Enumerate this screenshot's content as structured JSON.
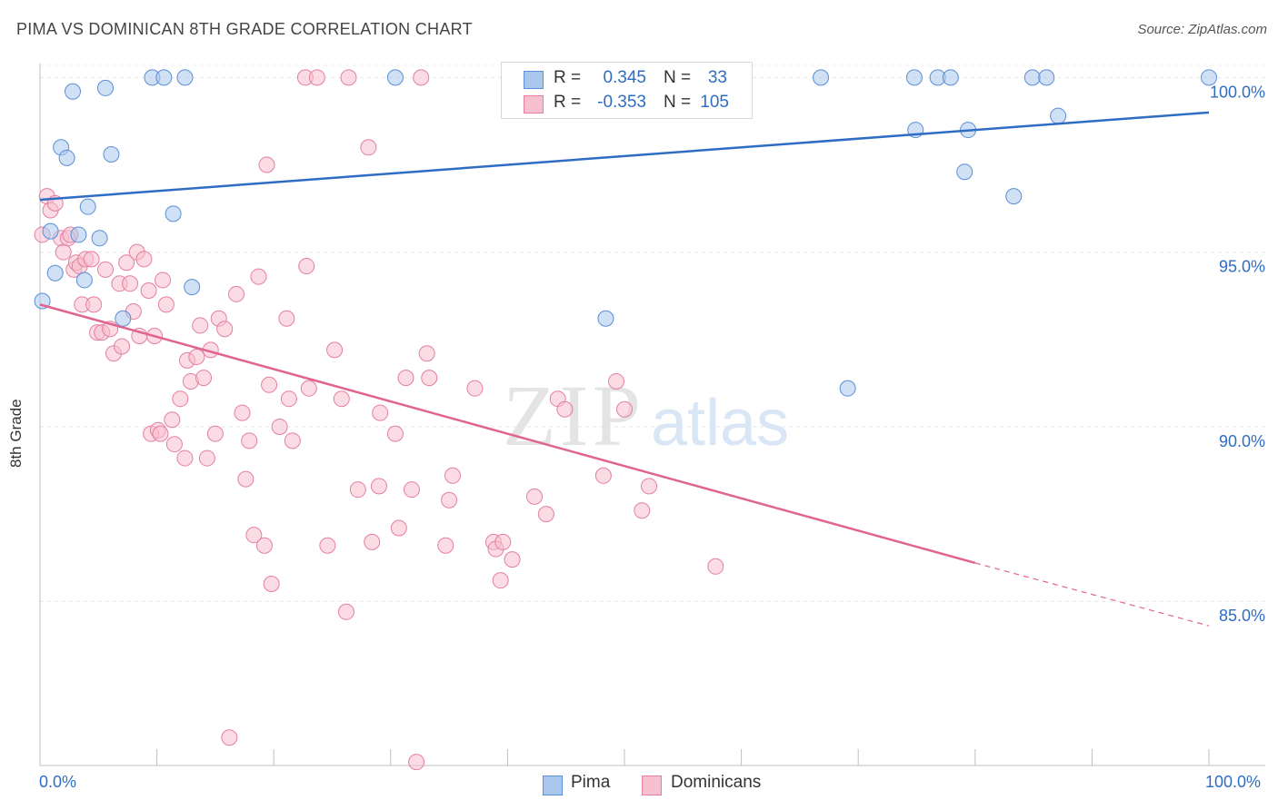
{
  "header": {
    "title": "PIMA VS DOMINICAN 8TH GRADE CORRELATION CHART",
    "source": "Source: ZipAtlas.com"
  },
  "watermark": {
    "zip": "ZIP",
    "atlas": "atlas"
  },
  "legend": {
    "pima": {
      "r_label": "R =",
      "r_value": "0.345",
      "n_label": "N =",
      "n_value": "33",
      "color": "#a9c6ec",
      "border": "#5b8fd6"
    },
    "dominicans": {
      "r_label": "R =",
      "r_value": "-0.353",
      "n_label": "N =",
      "n_value": "105",
      "color": "#f7c0d0",
      "border": "#e47fa0"
    }
  },
  "bottom_legend": {
    "pima": "Pima",
    "dominicans": "Dominicans"
  },
  "x_axis": {
    "min_label": "0.0%",
    "max_label": "100.0%"
  },
  "chart_data": {
    "type": "scatter",
    "title": "PIMA VS DOMINICAN 8TH GRADE CORRELATION CHART",
    "xlabel": "",
    "ylabel": "8th Grade",
    "xlim": [
      0,
      100
    ],
    "ylim": [
      80.3,
      100.4
    ],
    "y_ticks": [
      {
        "value": 85.0,
        "label": "85.0%"
      },
      {
        "value": 90.0,
        "label": "90.0%"
      },
      {
        "value": 95.0,
        "label": "95.0%"
      },
      {
        "value": 100.0,
        "label": "100.0%"
      }
    ],
    "grid": true,
    "legend_position": "top-center",
    "series": [
      {
        "name": "Pima",
        "color": "#a9c6ec",
        "edge": "#5b8fd6",
        "line_color": "#2f6dc4",
        "trend": {
          "x": [
            0,
            100
          ],
          "y": [
            96.5,
            99.0
          ]
        },
        "points": [
          [
            0.2,
            93.6
          ],
          [
            0.9,
            95.6
          ],
          [
            1.3,
            94.4
          ],
          [
            1.8,
            98.0
          ],
          [
            2.3,
            97.7
          ],
          [
            2.8,
            99.6
          ],
          [
            3.3,
            95.5
          ],
          [
            3.8,
            94.2
          ],
          [
            4.1,
            96.3
          ],
          [
            5.1,
            95.4
          ],
          [
            5.6,
            99.7
          ],
          [
            6.1,
            97.8
          ],
          [
            7.1,
            93.1
          ],
          [
            9.6,
            100.0
          ],
          [
            10.6,
            100.0
          ],
          [
            11.4,
            96.1
          ],
          [
            12.4,
            100.0
          ],
          [
            13.0,
            94.0
          ],
          [
            30.4,
            100.0
          ],
          [
            48.4,
            93.1
          ],
          [
            66.8,
            100.0
          ],
          [
            69.1,
            91.1
          ],
          [
            74.8,
            100.0
          ],
          [
            74.9,
            98.5
          ],
          [
            76.8,
            100.0
          ],
          [
            77.9,
            100.0
          ],
          [
            79.1,
            97.3
          ],
          [
            79.4,
            98.5
          ],
          [
            83.3,
            96.6
          ],
          [
            84.9,
            100.0
          ],
          [
            86.1,
            100.0
          ],
          [
            87.1,
            98.9
          ],
          [
            100.0,
            100.0
          ]
        ]
      },
      {
        "name": "Dominicans",
        "color": "#f7c0d0",
        "edge": "#e47fa0",
        "line_color": "#e0648f",
        "trend": {
          "x": [
            0,
            80
          ],
          "y": [
            93.5,
            86.1
          ]
        },
        "trend_dashed": {
          "x": [
            80,
            100
          ],
          "y": [
            86.1,
            84.3
          ]
        },
        "points": [
          [
            0.2,
            95.5
          ],
          [
            0.6,
            96.6
          ],
          [
            0.9,
            96.2
          ],
          [
            1.3,
            96.4
          ],
          [
            1.8,
            95.4
          ],
          [
            2.0,
            95.0
          ],
          [
            2.4,
            95.4
          ],
          [
            2.6,
            95.5
          ],
          [
            2.9,
            94.5
          ],
          [
            3.1,
            94.7
          ],
          [
            3.4,
            94.6
          ],
          [
            3.6,
            93.5
          ],
          [
            3.9,
            94.8
          ],
          [
            4.4,
            94.8
          ],
          [
            4.6,
            93.5
          ],
          [
            4.9,
            92.7
          ],
          [
            5.3,
            92.7
          ],
          [
            5.6,
            94.5
          ],
          [
            6.0,
            92.8
          ],
          [
            6.3,
            92.1
          ],
          [
            6.8,
            94.1
          ],
          [
            7.0,
            92.3
          ],
          [
            7.4,
            94.7
          ],
          [
            7.7,
            94.1
          ],
          [
            8.0,
            93.3
          ],
          [
            8.3,
            95.0
          ],
          [
            8.5,
            92.6
          ],
          [
            8.9,
            94.8
          ],
          [
            9.3,
            93.9
          ],
          [
            9.5,
            89.8
          ],
          [
            9.8,
            92.6
          ],
          [
            10.1,
            89.9
          ],
          [
            10.3,
            89.8
          ],
          [
            10.5,
            94.2
          ],
          [
            10.8,
            93.5
          ],
          [
            11.3,
            90.2
          ],
          [
            11.5,
            89.5
          ],
          [
            12.0,
            90.8
          ],
          [
            12.4,
            89.1
          ],
          [
            12.6,
            91.9
          ],
          [
            12.9,
            91.3
          ],
          [
            13.4,
            92.0
          ],
          [
            13.7,
            92.9
          ],
          [
            14.0,
            91.4
          ],
          [
            14.3,
            89.1
          ],
          [
            14.6,
            92.2
          ],
          [
            15.0,
            89.8
          ],
          [
            15.3,
            93.1
          ],
          [
            15.8,
            92.8
          ],
          [
            16.2,
            81.1
          ],
          [
            16.8,
            93.8
          ],
          [
            17.3,
            90.4
          ],
          [
            17.6,
            88.5
          ],
          [
            17.9,
            89.6
          ],
          [
            18.3,
            86.9
          ],
          [
            18.7,
            94.3
          ],
          [
            19.2,
            86.6
          ],
          [
            19.4,
            97.5
          ],
          [
            19.6,
            91.2
          ],
          [
            19.8,
            85.5
          ],
          [
            20.5,
            90.0
          ],
          [
            21.1,
            93.1
          ],
          [
            21.3,
            90.8
          ],
          [
            21.6,
            89.6
          ],
          [
            23.0,
            91.1
          ],
          [
            22.8,
            94.6
          ],
          [
            22.7,
            100.0
          ],
          [
            23.7,
            100.0
          ],
          [
            24.6,
            86.6
          ],
          [
            25.2,
            92.2
          ],
          [
            25.8,
            90.8
          ],
          [
            26.2,
            84.7
          ],
          [
            26.4,
            100.0
          ],
          [
            27.2,
            88.2
          ],
          [
            28.1,
            98.0
          ],
          [
            28.4,
            86.7
          ],
          [
            29.0,
            88.3
          ],
          [
            29.1,
            90.4
          ],
          [
            30.4,
            89.8
          ],
          [
            30.7,
            87.1
          ],
          [
            31.3,
            91.4
          ],
          [
            31.8,
            88.2
          ],
          [
            32.2,
            80.4
          ],
          [
            32.6,
            100.0
          ],
          [
            33.1,
            92.1
          ],
          [
            33.3,
            91.4
          ],
          [
            34.7,
            86.6
          ],
          [
            35.0,
            87.9
          ],
          [
            35.3,
            88.6
          ],
          [
            37.2,
            91.1
          ],
          [
            38.8,
            86.7
          ],
          [
            39.0,
            86.5
          ],
          [
            39.6,
            86.7
          ],
          [
            39.4,
            85.6
          ],
          [
            40.4,
            86.2
          ],
          [
            42.3,
            88.0
          ],
          [
            43.3,
            87.5
          ],
          [
            44.3,
            90.8
          ],
          [
            44.9,
            90.5
          ],
          [
            48.2,
            88.6
          ],
          [
            49.3,
            91.3
          ],
          [
            50.0,
            90.5
          ],
          [
            51.5,
            87.6
          ],
          [
            52.1,
            88.3
          ],
          [
            57.8,
            86.0
          ]
        ]
      }
    ]
  }
}
